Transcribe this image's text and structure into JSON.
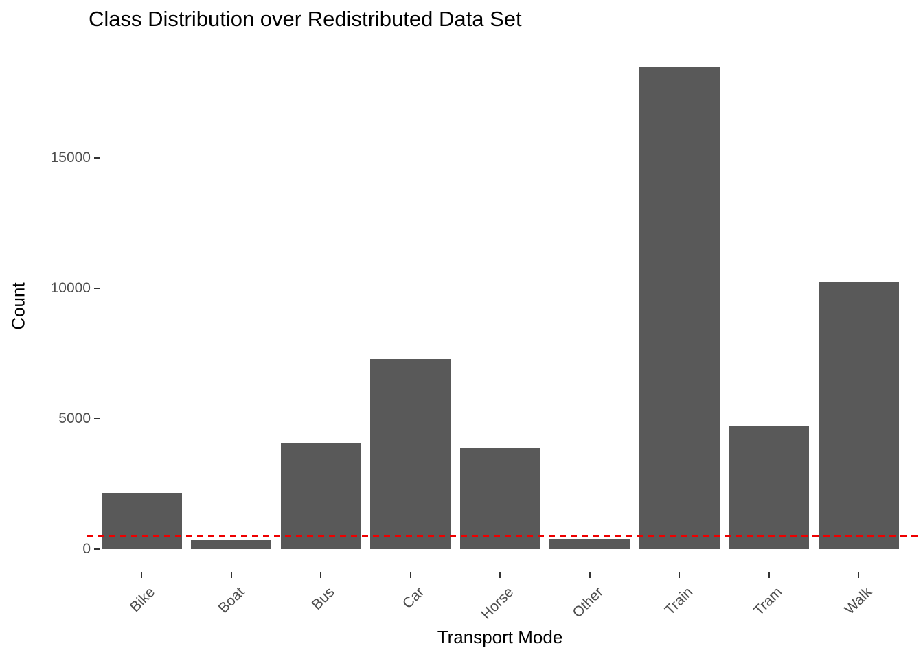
{
  "chart_data": {
    "type": "bar",
    "title": "Class Distribution over Redistributed Data Set",
    "xlabel": "Transport Mode",
    "ylabel": "Count",
    "categories": [
      "Bike",
      "Boat",
      "Bus",
      "Car",
      "Horse",
      "Other",
      "Train",
      "Tram",
      "Walk"
    ],
    "values": [
      2150,
      340,
      4080,
      7290,
      3870,
      400,
      18500,
      4710,
      10240
    ],
    "yticks": [
      0,
      5000,
      10000,
      15000
    ],
    "ylim": [
      0,
      19300
    ],
    "grid": false,
    "legend": false,
    "bar_color": "#595959",
    "axis_text_color": "#4d4d4d",
    "tick_mark_color": "#333333",
    "threshold_line": {
      "value": 500,
      "color": "#ee0000",
      "style": "dashed"
    }
  }
}
